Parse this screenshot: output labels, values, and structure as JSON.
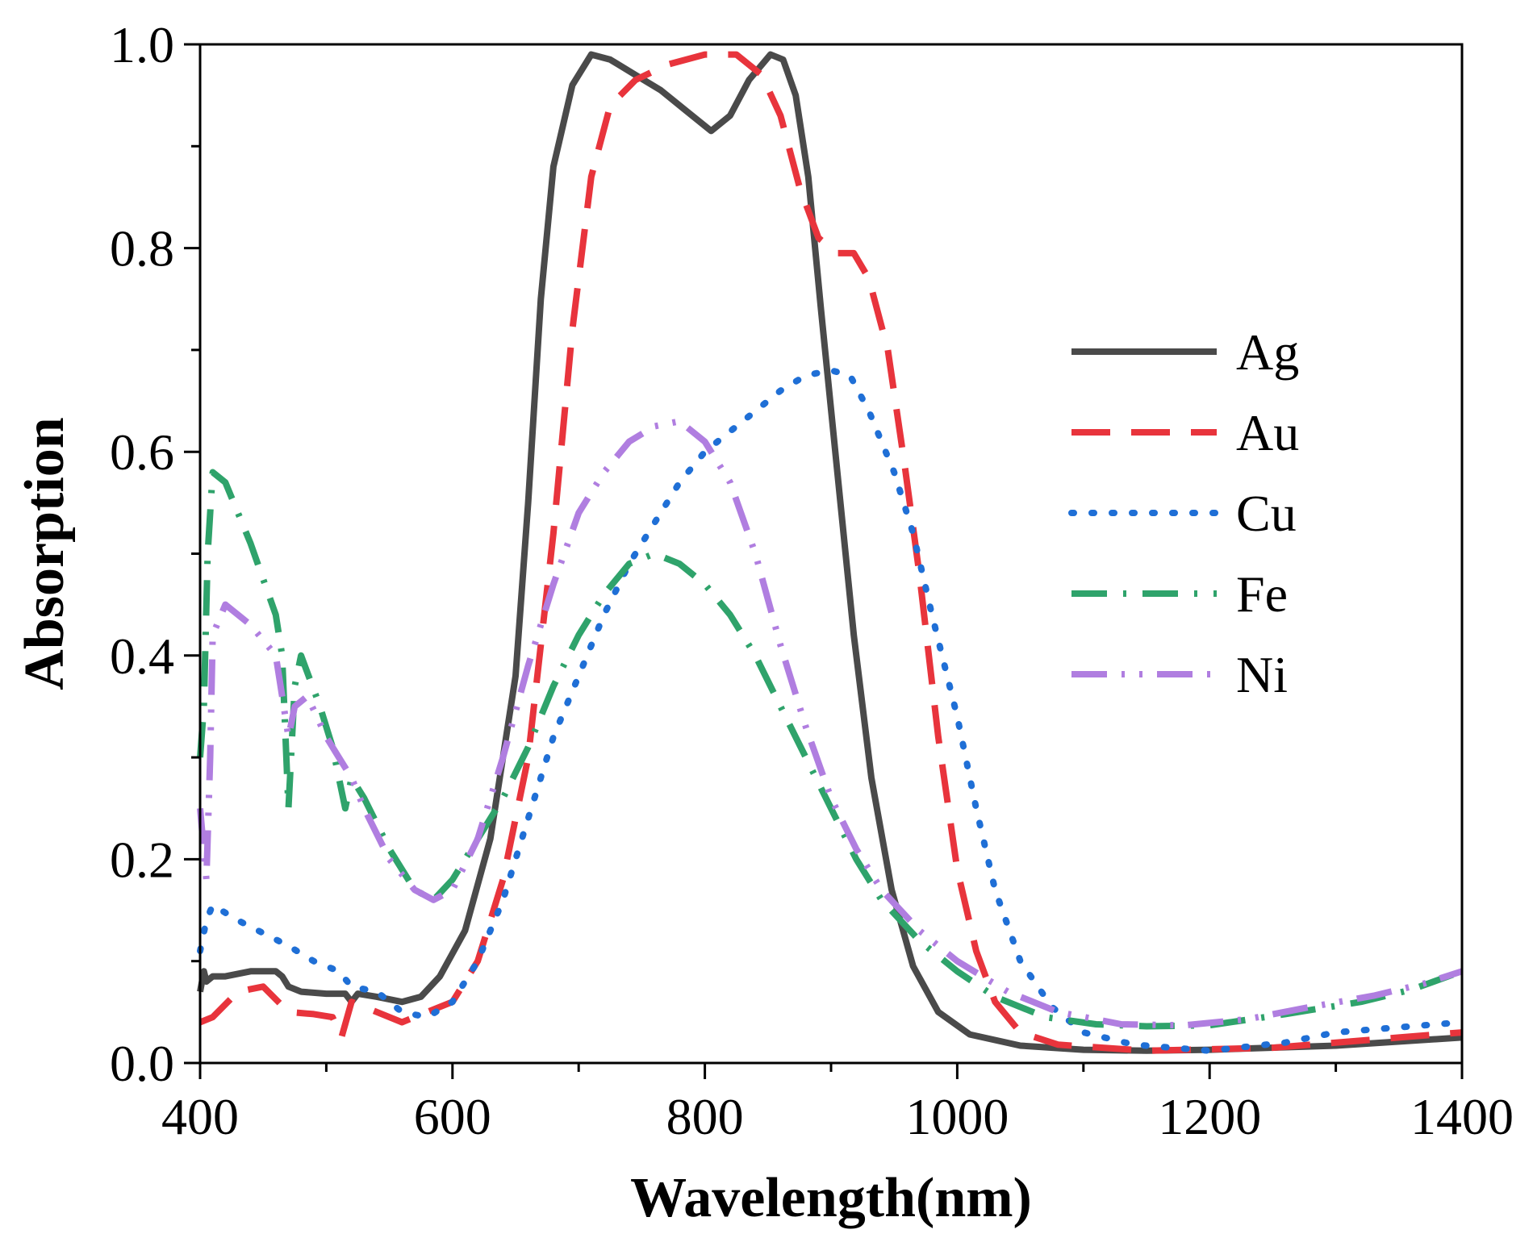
{
  "chart_data": {
    "type": "line",
    "title": "",
    "xlabel": "Wavelength(nm)",
    "ylabel": "Absorption",
    "xlim": [
      400,
      1400
    ],
    "ylim": [
      0.0,
      1.0
    ],
    "x_ticks": [
      400,
      600,
      800,
      1000,
      1200,
      1400
    ],
    "y_ticks": [
      0.0,
      0.2,
      0.4,
      0.6,
      0.8,
      1.0
    ],
    "x_tick_labels": [
      "400",
      "600",
      "800",
      "1000",
      "1200",
      "1400"
    ],
    "y_tick_labels": [
      "0.0",
      "0.2",
      "0.4",
      "0.6",
      "0.8",
      "1.0"
    ],
    "grid": false,
    "legend_position": "right",
    "series": [
      {
        "name": "Ag",
        "color": "#4a4a4a",
        "dash": "solid",
        "points": [
          [
            400,
            0.07
          ],
          [
            403,
            0.09
          ],
          [
            405,
            0.08
          ],
          [
            410,
            0.085
          ],
          [
            420,
            0.085
          ],
          [
            440,
            0.09
          ],
          [
            460,
            0.09
          ],
          [
            465,
            0.085
          ],
          [
            470,
            0.075
          ],
          [
            480,
            0.07
          ],
          [
            500,
            0.068
          ],
          [
            515,
            0.068
          ],
          [
            520,
            0.06
          ],
          [
            525,
            0.068
          ],
          [
            540,
            0.065
          ],
          [
            560,
            0.06
          ],
          [
            575,
            0.065
          ],
          [
            590,
            0.085
          ],
          [
            610,
            0.13
          ],
          [
            630,
            0.22
          ],
          [
            650,
            0.38
          ],
          [
            660,
            0.55
          ],
          [
            670,
            0.75
          ],
          [
            680,
            0.88
          ],
          [
            695,
            0.96
          ],
          [
            710,
            0.99
          ],
          [
            725,
            0.985
          ],
          [
            745,
            0.97
          ],
          [
            765,
            0.955
          ],
          [
            785,
            0.935
          ],
          [
            805,
            0.915
          ],
          [
            820,
            0.93
          ],
          [
            835,
            0.965
          ],
          [
            852,
            0.99
          ],
          [
            862,
            0.985
          ],
          [
            872,
            0.95
          ],
          [
            882,
            0.87
          ],
          [
            892,
            0.74
          ],
          [
            905,
            0.58
          ],
          [
            918,
            0.42
          ],
          [
            932,
            0.28
          ],
          [
            948,
            0.17
          ],
          [
            965,
            0.095
          ],
          [
            985,
            0.05
          ],
          [
            1010,
            0.028
          ],
          [
            1050,
            0.017
          ],
          [
            1100,
            0.013
          ],
          [
            1150,
            0.012
          ],
          [
            1200,
            0.013
          ],
          [
            1300,
            0.017
          ],
          [
            1400,
            0.025
          ]
        ]
      },
      {
        "name": "Au",
        "color": "#e8343c",
        "dash": "long",
        "points": [
          [
            400,
            0.04
          ],
          [
            410,
            0.045
          ],
          [
            430,
            0.07
          ],
          [
            450,
            0.075
          ],
          [
            470,
            0.05
          ],
          [
            490,
            0.048
          ],
          [
            505,
            0.045
          ],
          [
            512,
            0.025
          ],
          [
            520,
            0.06
          ],
          [
            540,
            0.05
          ],
          [
            560,
            0.04
          ],
          [
            580,
            0.05
          ],
          [
            600,
            0.06
          ],
          [
            620,
            0.1
          ],
          [
            640,
            0.18
          ],
          [
            660,
            0.3
          ],
          [
            680,
            0.52
          ],
          [
            695,
            0.72
          ],
          [
            710,
            0.87
          ],
          [
            725,
            0.94
          ],
          [
            745,
            0.965
          ],
          [
            770,
            0.98
          ],
          [
            800,
            0.99
          ],
          [
            825,
            0.99
          ],
          [
            845,
            0.97
          ],
          [
            860,
            0.93
          ],
          [
            875,
            0.86
          ],
          [
            890,
            0.81
          ],
          [
            905,
            0.795
          ],
          [
            918,
            0.795
          ],
          [
            930,
            0.77
          ],
          [
            945,
            0.7
          ],
          [
            958,
            0.59
          ],
          [
            970,
            0.48
          ],
          [
            985,
            0.32
          ],
          [
            1000,
            0.19
          ],
          [
            1015,
            0.11
          ],
          [
            1030,
            0.06
          ],
          [
            1050,
            0.03
          ],
          [
            1080,
            0.018
          ],
          [
            1150,
            0.012
          ],
          [
            1250,
            0.015
          ],
          [
            1350,
            0.025
          ],
          [
            1400,
            0.03
          ]
        ]
      },
      {
        "name": "Cu",
        "color": "#1f6fd6",
        "dash": "dot",
        "points": [
          [
            400,
            0.11
          ],
          [
            405,
            0.14
          ],
          [
            410,
            0.155
          ],
          [
            430,
            0.14
          ],
          [
            470,
            0.115
          ],
          [
            490,
            0.1
          ],
          [
            510,
            0.09
          ],
          [
            520,
            0.075
          ],
          [
            540,
            0.07
          ],
          [
            560,
            0.05
          ],
          [
            580,
            0.045
          ],
          [
            600,
            0.06
          ],
          [
            620,
            0.1
          ],
          [
            640,
            0.16
          ],
          [
            660,
            0.24
          ],
          [
            680,
            0.32
          ],
          [
            700,
            0.38
          ],
          [
            720,
            0.44
          ],
          [
            740,
            0.49
          ],
          [
            760,
            0.53
          ],
          [
            780,
            0.57
          ],
          [
            800,
            0.6
          ],
          [
            820,
            0.62
          ],
          [
            840,
            0.64
          ],
          [
            860,
            0.66
          ],
          [
            880,
            0.675
          ],
          [
            900,
            0.68
          ],
          [
            915,
            0.675
          ],
          [
            930,
            0.64
          ],
          [
            950,
            0.58
          ],
          [
            965,
            0.52
          ],
          [
            980,
            0.44
          ],
          [
            1000,
            0.34
          ],
          [
            1015,
            0.25
          ],
          [
            1030,
            0.17
          ],
          [
            1050,
            0.1
          ],
          [
            1075,
            0.055
          ],
          [
            1100,
            0.03
          ],
          [
            1140,
            0.018
          ],
          [
            1200,
            0.012
          ],
          [
            1260,
            0.02
          ],
          [
            1300,
            0.03
          ],
          [
            1350,
            0.035
          ],
          [
            1400,
            0.04
          ]
        ]
      },
      {
        "name": "Fe",
        "color": "#2fa36b",
        "dash": "dashdot",
        "points": [
          [
            400,
            0.3
          ],
          [
            403,
            0.35
          ],
          [
            406,
            0.5
          ],
          [
            410,
            0.58
          ],
          [
            420,
            0.57
          ],
          [
            440,
            0.51
          ],
          [
            460,
            0.44
          ],
          [
            465,
            0.4
          ],
          [
            470,
            0.25
          ],
          [
            475,
            0.37
          ],
          [
            480,
            0.4
          ],
          [
            495,
            0.35
          ],
          [
            505,
            0.31
          ],
          [
            510,
            0.28
          ],
          [
            515,
            0.25
          ],
          [
            520,
            0.28
          ],
          [
            530,
            0.26
          ],
          [
            550,
            0.21
          ],
          [
            570,
            0.17
          ],
          [
            585,
            0.16
          ],
          [
            600,
            0.18
          ],
          [
            620,
            0.22
          ],
          [
            640,
            0.26
          ],
          [
            660,
            0.31
          ],
          [
            680,
            0.37
          ],
          [
            700,
            0.42
          ],
          [
            720,
            0.46
          ],
          [
            740,
            0.49
          ],
          [
            760,
            0.5
          ],
          [
            780,
            0.49
          ],
          [
            800,
            0.47
          ],
          [
            820,
            0.44
          ],
          [
            840,
            0.4
          ],
          [
            860,
            0.35
          ],
          [
            880,
            0.3
          ],
          [
            900,
            0.25
          ],
          [
            920,
            0.2
          ],
          [
            940,
            0.16
          ],
          [
            970,
            0.12
          ],
          [
            1000,
            0.09
          ],
          [
            1030,
            0.065
          ],
          [
            1070,
            0.045
          ],
          [
            1110,
            0.038
          ],
          [
            1150,
            0.036
          ],
          [
            1200,
            0.037
          ],
          [
            1260,
            0.048
          ],
          [
            1320,
            0.06
          ],
          [
            1360,
            0.072
          ],
          [
            1400,
            0.09
          ]
        ]
      },
      {
        "name": "Ni",
        "color": "#b07ee0",
        "dash": "dashdotdot",
        "points": [
          [
            400,
            0.25
          ],
          [
            405,
            0.18
          ],
          [
            408,
            0.3
          ],
          [
            410,
            0.42
          ],
          [
            420,
            0.45
          ],
          [
            440,
            0.43
          ],
          [
            460,
            0.4
          ],
          [
            465,
            0.36
          ],
          [
            470,
            0.32
          ],
          [
            475,
            0.35
          ],
          [
            485,
            0.36
          ],
          [
            500,
            0.32
          ],
          [
            510,
            0.3
          ],
          [
            520,
            0.28
          ],
          [
            530,
            0.25
          ],
          [
            550,
            0.2
          ],
          [
            570,
            0.17
          ],
          [
            585,
            0.16
          ],
          [
            600,
            0.17
          ],
          [
            620,
            0.22
          ],
          [
            640,
            0.3
          ],
          [
            660,
            0.39
          ],
          [
            680,
            0.47
          ],
          [
            700,
            0.54
          ],
          [
            720,
            0.58
          ],
          [
            740,
            0.61
          ],
          [
            760,
            0.625
          ],
          [
            780,
            0.63
          ],
          [
            800,
            0.61
          ],
          [
            820,
            0.57
          ],
          [
            840,
            0.5
          ],
          [
            860,
            0.41
          ],
          [
            880,
            0.33
          ],
          [
            900,
            0.26
          ],
          [
            920,
            0.21
          ],
          [
            940,
            0.17
          ],
          [
            970,
            0.13
          ],
          [
            1000,
            0.1
          ],
          [
            1040,
            0.07
          ],
          [
            1080,
            0.05
          ],
          [
            1130,
            0.038
          ],
          [
            1180,
            0.037
          ],
          [
            1230,
            0.043
          ],
          [
            1280,
            0.055
          ],
          [
            1330,
            0.066
          ],
          [
            1370,
            0.078
          ],
          [
            1400,
            0.09
          ]
        ]
      }
    ]
  }
}
